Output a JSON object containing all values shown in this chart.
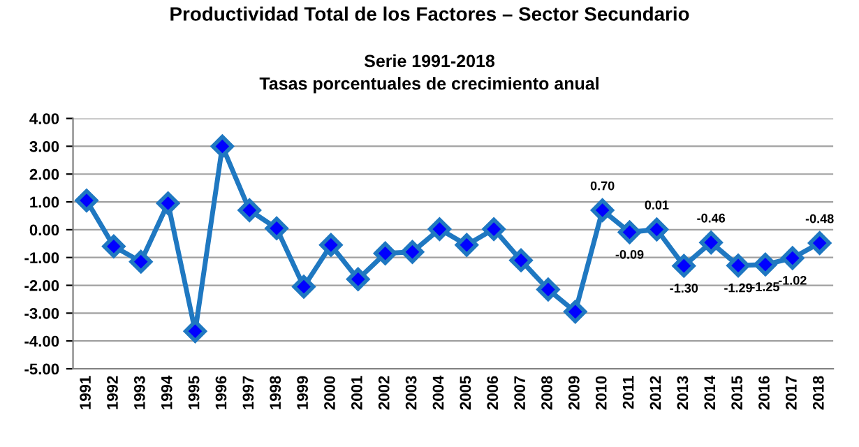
{
  "chart_data": {
    "type": "line",
    "title": "Productividad Total de los Factores – Sector Secundario",
    "subtitle": "Serie 1991-2018\nTasas porcentuales de crecimiento anual",
    "categories": [
      "1991",
      "1992",
      "1993",
      "1994",
      "1995",
      "1996",
      "1997",
      "1998",
      "1999",
      "2000",
      "2001",
      "2002",
      "2003",
      "2004",
      "2005",
      "2006",
      "2007",
      "2008",
      "2009",
      "2010",
      "2011",
      "2012",
      "2013",
      "2014",
      "2015",
      "2016",
      "2017",
      "2018"
    ],
    "series": [
      {
        "color": "#1f78c1",
        "values": [
          1.05,
          -0.6,
          -1.15,
          0.95,
          -3.65,
          3.0,
          0.7,
          0.05,
          -2.05,
          -0.55,
          -1.78,
          -0.85,
          -0.8,
          0.02,
          -0.55,
          0.02,
          -1.1,
          -2.15,
          -2.95,
          0.7,
          -0.09,
          0.01,
          -1.3,
          -0.46,
          -1.29,
          -1.25,
          -1.02,
          -0.48
        ],
        "value_labels": [
          null,
          null,
          null,
          null,
          null,
          null,
          null,
          null,
          null,
          null,
          null,
          null,
          null,
          null,
          null,
          null,
          null,
          null,
          null,
          "0.70",
          "-0.09",
          "0.01",
          "-1.30",
          "-0.46",
          "-1.29",
          "-1.25",
          "-1.02",
          "-0.48"
        ]
      }
    ],
    "ylim": [
      -5,
      4
    ],
    "yticks": [
      {
        "value": 4,
        "label": "4.00"
      },
      {
        "value": 3,
        "label": "3.00"
      },
      {
        "value": 2,
        "label": "2.00"
      },
      {
        "value": 1,
        "label": "1.00"
      },
      {
        "value": 0,
        "label": "0.00"
      },
      {
        "value": -1,
        "label": "-1.00"
      },
      {
        "value": -2,
        "label": "-2.00"
      },
      {
        "value": -3,
        "label": "-3.00"
      },
      {
        "value": -4,
        "label": "-4.00"
      },
      {
        "value": -5,
        "label": "-5.00"
      }
    ],
    "grid": "y",
    "marker": "diamond",
    "line_style": "solid"
  }
}
